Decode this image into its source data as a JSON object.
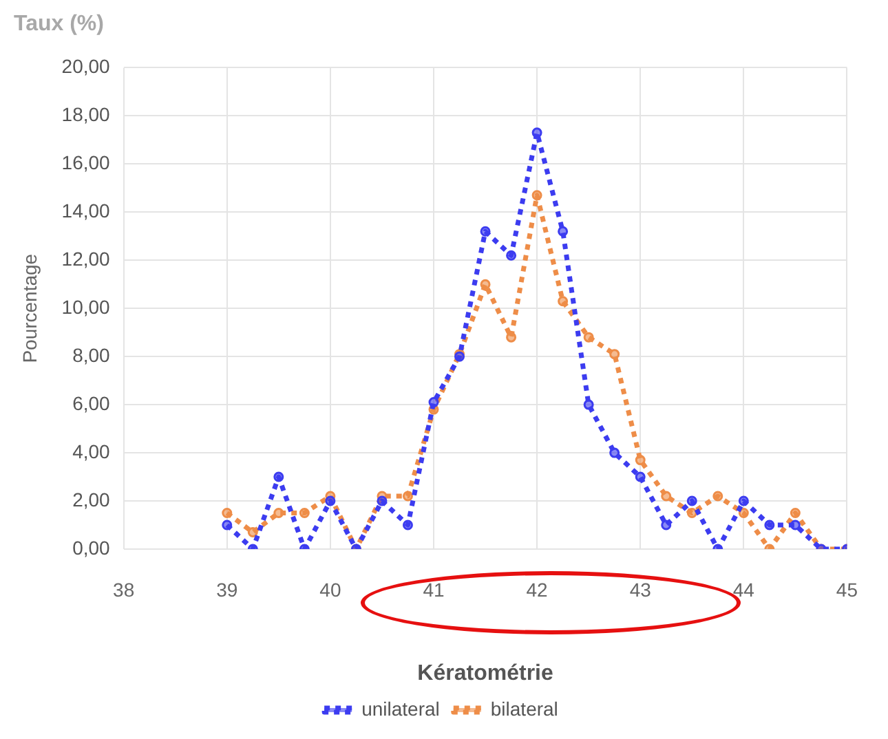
{
  "chart_data": {
    "type": "line",
    "title": "Taux (%)",
    "xlabel": "Kératométrie",
    "ylabel": "Pourcentage",
    "x": [
      39,
      39.25,
      39.5,
      39.75,
      40,
      40.25,
      40.5,
      40.75,
      41,
      41.25,
      41.5,
      41.75,
      42,
      42.25,
      42.5,
      42.75,
      43,
      43.25,
      43.5,
      43.75,
      44,
      44.25,
      44.5,
      44.75,
      45
    ],
    "series": [
      {
        "name": "unilateral",
        "color": "#3c3cf0",
        "values": [
          1.0,
          0,
          3.0,
          0,
          2.0,
          0,
          2.0,
          1.0,
          6.1,
          8.0,
          13.2,
          12.2,
          17.3,
          13.2,
          6.0,
          4.0,
          3.0,
          1.0,
          2.0,
          0,
          2.0,
          1.0,
          1.0,
          0,
          0
        ]
      },
      {
        "name": "bilateral",
        "color": "#ee8d48",
        "values": [
          1.5,
          0.7,
          1.5,
          1.5,
          2.2,
          0,
          2.2,
          2.2,
          5.8,
          8.1,
          11.0,
          8.8,
          14.7,
          10.3,
          8.8,
          8.1,
          3.7,
          2.2,
          1.5,
          2.2,
          1.5,
          0,
          1.5,
          0,
          0
        ]
      }
    ],
    "xlim": [
      38,
      45
    ],
    "xticks": [
      38,
      39,
      40,
      41,
      42,
      43,
      44,
      45
    ],
    "ylim": [
      0,
      20
    ],
    "yticks": [
      {
        "value": 0,
        "label": "0,00"
      },
      {
        "value": 2,
        "label": "2,00"
      },
      {
        "value": 4,
        "label": "4,00"
      },
      {
        "value": 6,
        "label": "6,00"
      },
      {
        "value": 8,
        "label": "8,00"
      },
      {
        "value": 10,
        "label": "10,00"
      },
      {
        "value": 12,
        "label": "12,00"
      },
      {
        "value": 14,
        "label": "14,00"
      },
      {
        "value": 16,
        "label": "16,00"
      },
      {
        "value": 18,
        "label": "18,00"
      },
      {
        "value": 20,
        "label": "20,00"
      }
    ],
    "grid": true,
    "legend": "bottom",
    "marker": "circle",
    "line_style": "dotted"
  }
}
